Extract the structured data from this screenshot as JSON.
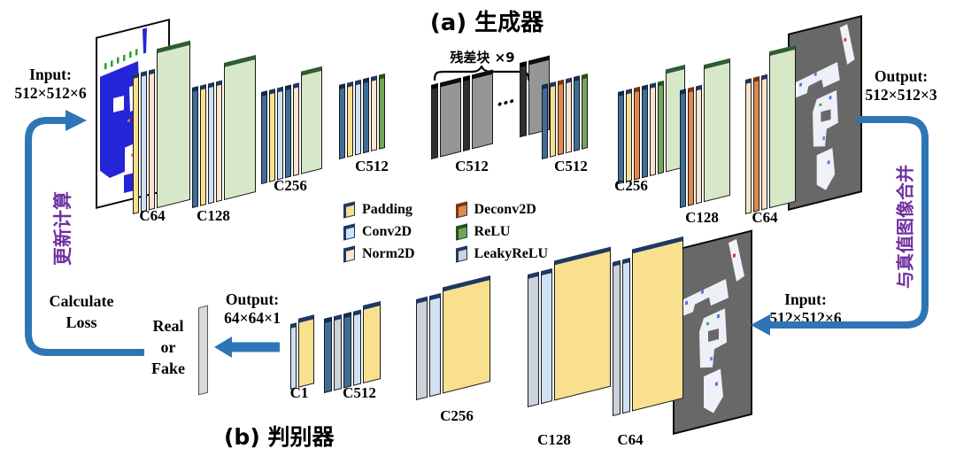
{
  "titles": {
    "generator": "(a) 生成器",
    "discriminator": "(b) 判别器"
  },
  "generator": {
    "input": {
      "label": "Input:",
      "size": "512×512×6"
    },
    "output": {
      "label": "Output:",
      "size": "512×512×3"
    },
    "residual": {
      "label": "残差块 ×9",
      "dots": "•••"
    }
  },
  "discriminator": {
    "input": {
      "label": "Input:",
      "size": "512×512×6"
    },
    "output": {
      "label": "Output:",
      "size": "64×64×1"
    },
    "decision": {
      "line1": "Real",
      "line2": "or",
      "line3": "Fake"
    },
    "loss": {
      "line1": "Calculate",
      "line2": "Loss"
    }
  },
  "flow": {
    "left_text": "更新计算",
    "right_text": "与真值图像合并",
    "arrow_color": "#2e75b6",
    "purple": "#7030a0"
  },
  "legend": {
    "items": [
      {
        "label": "Padding",
        "type": "padding",
        "color": "#f8e08f"
      },
      {
        "label": "Conv2D",
        "type": "conv2d",
        "color": "#cfe2f3"
      },
      {
        "label": "Norm2D",
        "type": "norm2d",
        "color": "#fde5cd"
      },
      {
        "label": "Deconv2D",
        "type": "deconv2d",
        "color": "#e3884a"
      },
      {
        "label": "ReLU",
        "type": "relu",
        "color": "#70a956"
      },
      {
        "label": "LeakyReLU",
        "type": "leaky",
        "color": "#ccd2da"
      }
    ]
  },
  "stacks": {
    "gen_c64": {
      "label": "C64",
      "slabs": [
        "padding",
        "conv2d",
        "norm2d"
      ],
      "panel": "relu"
    },
    "gen_c128": {
      "label": "C128",
      "slabs": [
        "steel",
        "padding",
        "conv2d",
        "norm2d"
      ],
      "panel": "relu"
    },
    "gen_c256": {
      "label": "C256",
      "slabs": [
        "steel",
        "padding",
        "conv2d",
        "steel",
        "norm2d"
      ],
      "panel": "relu"
    },
    "gen_c512a": {
      "label": "C512",
      "slabs": [
        "steel",
        "padding",
        "conv2d",
        "steel",
        "norm2d",
        "relu"
      ]
    },
    "res_c512": {
      "label": "C512",
      "slabs": [
        "res-dark",
        "res-gray",
        "res-dark",
        "res-gray",
        "dots",
        "res-dark",
        "res-gray"
      ]
    },
    "gen_c512b": {
      "label": "C512",
      "slabs": [
        "steel",
        "padding",
        "deconv2d",
        "norm2d",
        "steel",
        "relu"
      ]
    },
    "gen_c256d": {
      "label": "C256",
      "slabs": [
        "steel",
        "padding",
        "deconv2d",
        "steel",
        "norm2d",
        "relu"
      ],
      "panel": "relu"
    },
    "gen_c128d": {
      "label": "C128",
      "slabs": [
        "steel",
        "deconv2d",
        "norm2d"
      ],
      "panel": "relu"
    },
    "gen_c64d": {
      "label": "C64",
      "slabs": [
        "norm2d",
        "deconv2d",
        "norm2d"
      ],
      "panel": "relu"
    },
    "d_c1": {
      "label": "C1",
      "slabs": [
        "conv2d"
      ],
      "panel": "padding"
    },
    "d_c512": {
      "label": "C512",
      "slabs": [
        "steel",
        "leaky",
        "steel",
        "conv2d"
      ],
      "panel": "padding"
    },
    "d_c256": {
      "label": "C256",
      "slabs": [
        "leaky",
        "conv2d"
      ],
      "panel": "padding"
    },
    "d_c128": {
      "label": "C128",
      "slabs": [
        "leaky",
        "conv2d"
      ],
      "panel": "padding"
    },
    "d_c64": {
      "label": "C64",
      "slabs": [
        "leaky",
        "conv2d"
      ],
      "panel": "padding"
    }
  }
}
